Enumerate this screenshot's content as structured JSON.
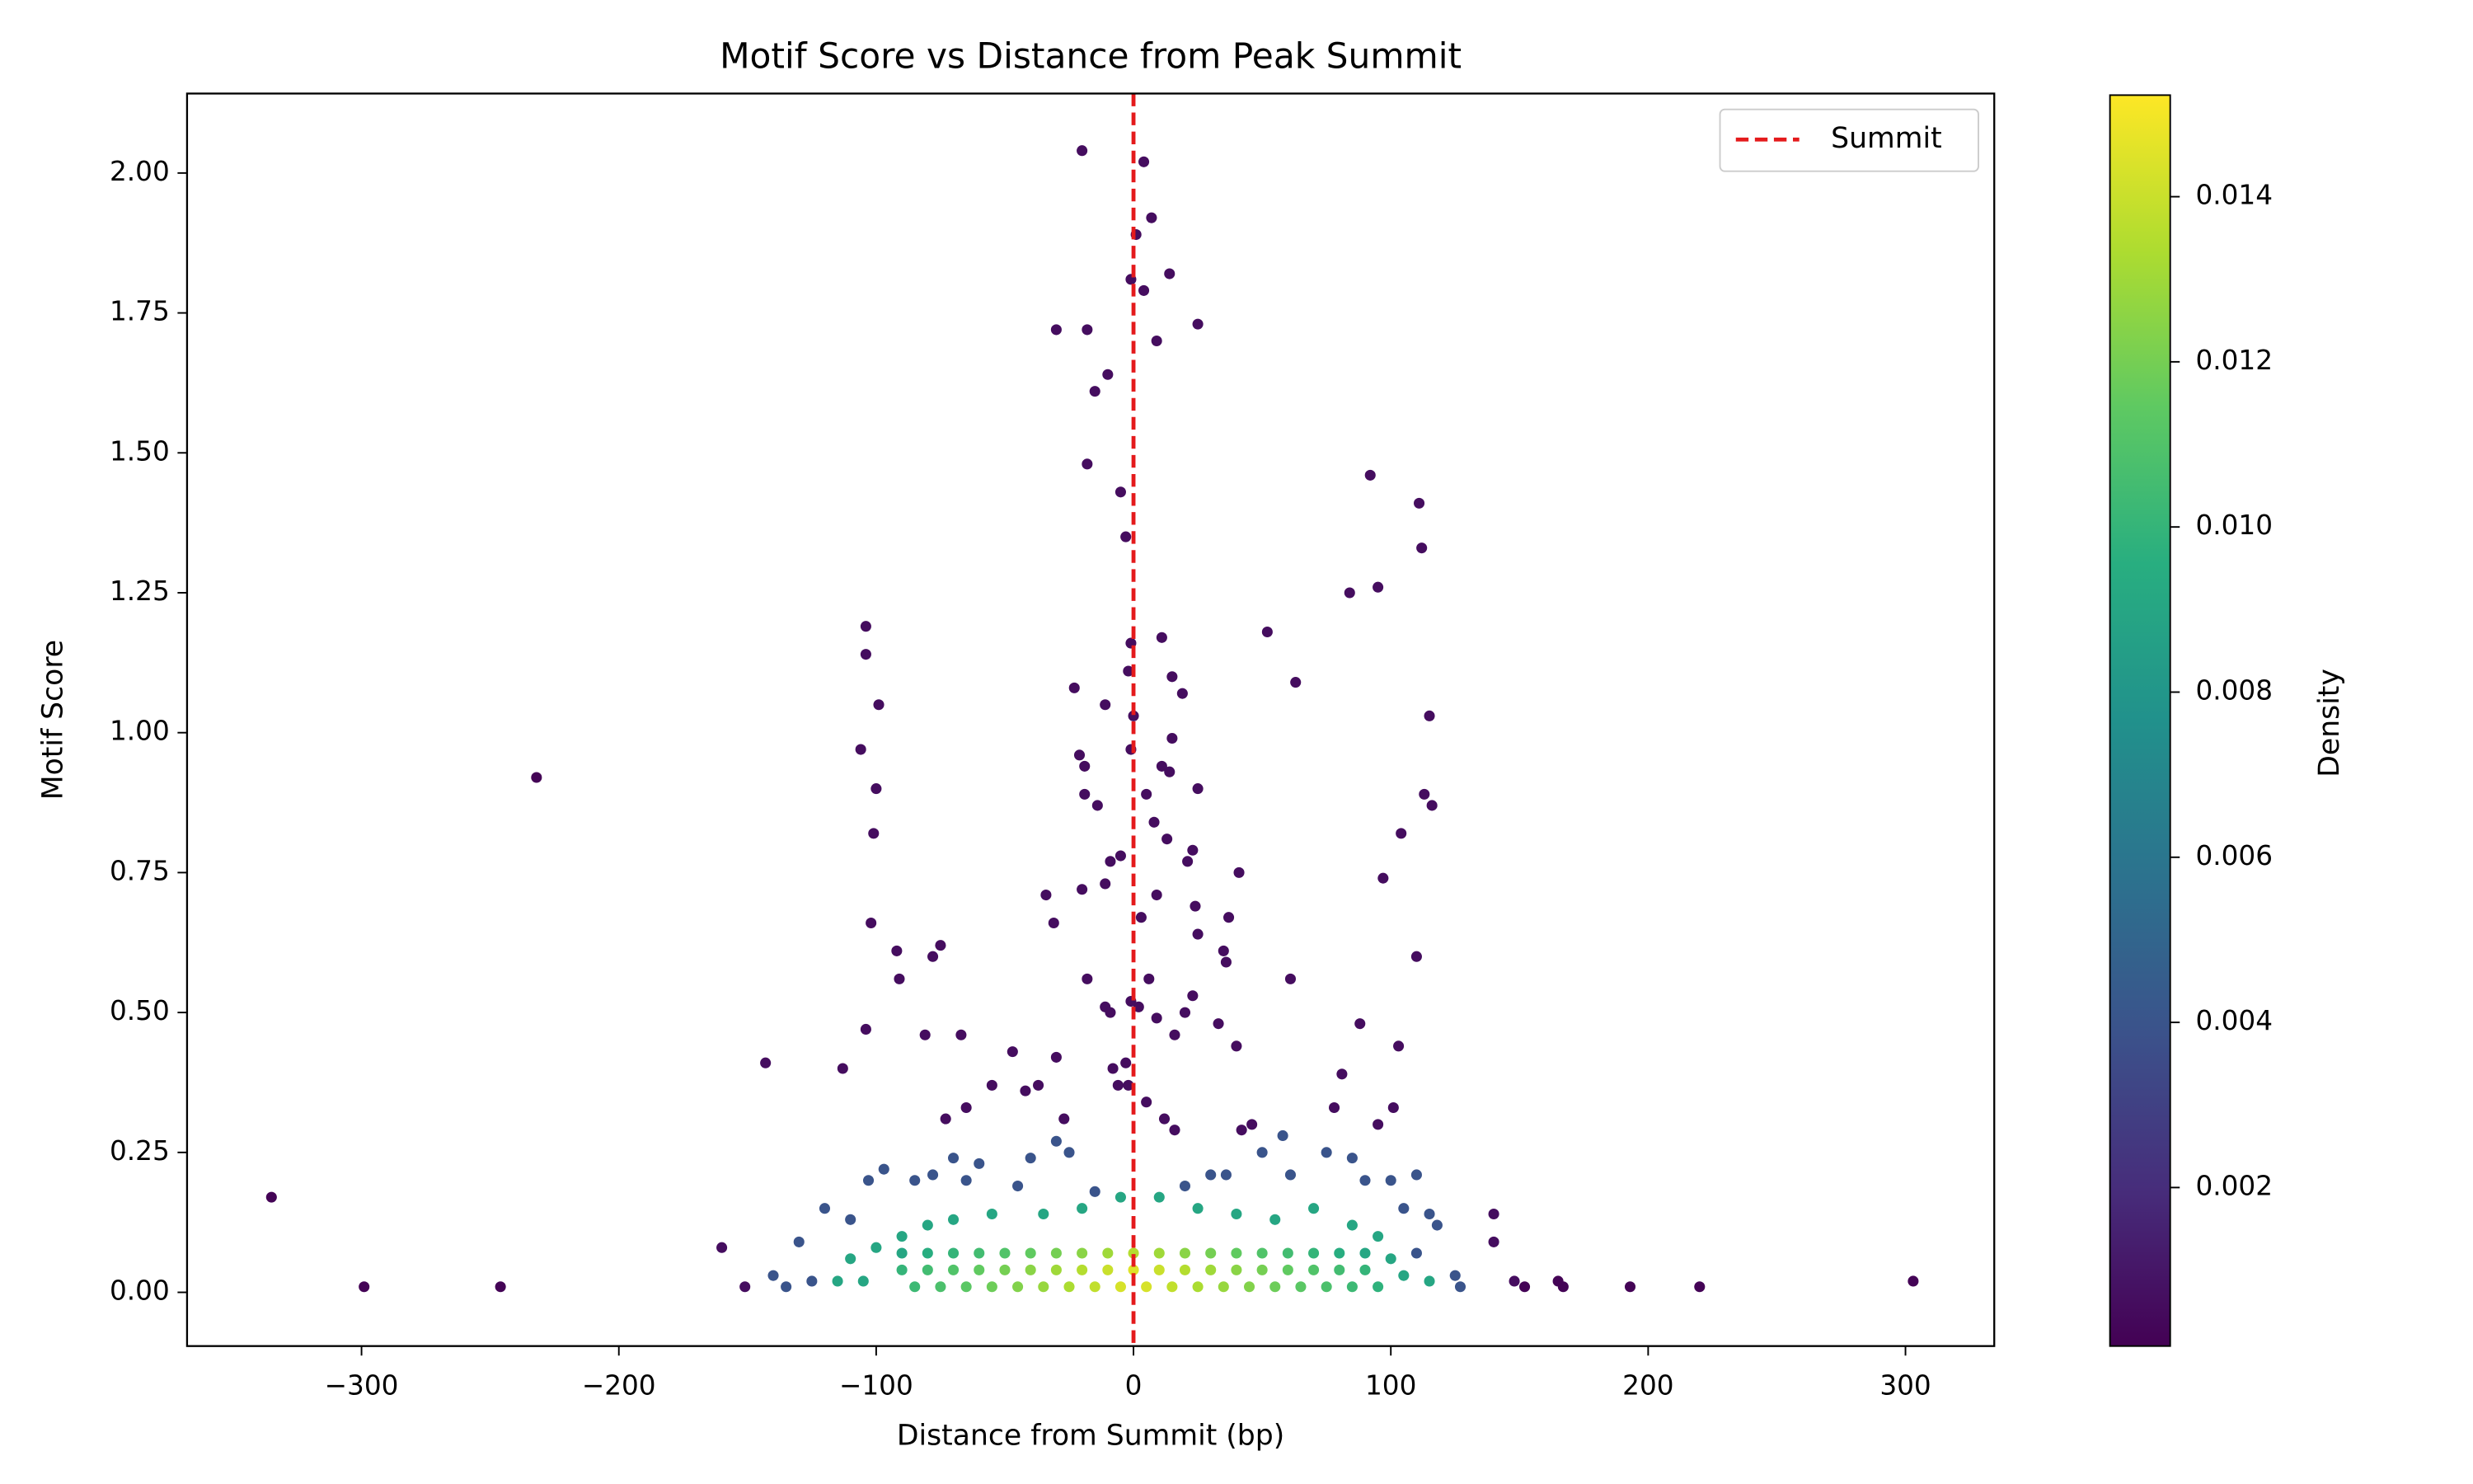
{
  "chart_data": {
    "type": "scatter",
    "title": "Motif Score vs Distance from Peak Summit",
    "x_label": "Distance from Summit (bp)",
    "y_label": "Motif Score",
    "xlim": [
      -367.8,
      334.5
    ],
    "ylim": [
      -0.096,
      2.142
    ],
    "xticks": [
      {
        "value": -300,
        "label": "−300"
      },
      {
        "value": -200,
        "label": "−200"
      },
      {
        "value": -100,
        "label": "−100"
      },
      0,
      100,
      200,
      300
    ],
    "yticks": [
      {
        "value": 0,
        "label": "0.00"
      },
      0.25,
      {
        "value": 0.5,
        "label": "0.50"
      },
      0.75,
      {
        "value": 1,
        "label": "1.00"
      },
      1.25,
      {
        "value": 1.5,
        "label": "1.50"
      },
      1.75,
      {
        "value": 2,
        "label": "2.00"
      }
    ],
    "grid": false,
    "colormap": "viridis",
    "colorbar": {
      "label": "Density",
      "lim": [
        8e-05,
        0.01523
      ],
      "ticks": [
        0.002,
        0.004,
        0.006,
        0.008,
        {
          "value": 0.01,
          "label": "0.010"
        },
        0.012,
        0.014
      ]
    },
    "reference_line": {
      "x": 0,
      "name": "Summit",
      "color": "#e41a1c",
      "style": "dashed"
    },
    "legend": "upper right",
    "x": [
      -335,
      -299,
      -246,
      -232,
      303,
      220,
      193,
      167,
      165,
      152,
      -20,
      4,
      7,
      1,
      -1,
      14,
      4,
      -30,
      -18,
      25,
      9,
      -10,
      -15,
      -18,
      -5,
      -3,
      92,
      111,
      112,
      95,
      84,
      52,
      -104,
      -104,
      11,
      -99,
      63,
      -1,
      -23,
      15,
      19,
      -2,
      -11,
      0,
      115,
      -106,
      -21,
      -1,
      15,
      -19,
      11,
      14,
      -100,
      -19,
      -14,
      5,
      25,
      113,
      116,
      -101,
      8,
      13,
      104,
      -9,
      -5,
      23,
      21,
      41,
      97,
      -34,
      -20,
      -11,
      9,
      3,
      24,
      37,
      -31,
      -102,
      -92,
      -75,
      -78,
      25,
      -91,
      35,
      36,
      110,
      61,
      -18,
      6,
      -11,
      -9,
      -1,
      2,
      23,
      20,
      -104,
      -81,
      -67,
      33,
      9,
      16,
      88,
      -143,
      -113,
      -47,
      -30,
      -8,
      -3,
      40,
      81,
      103,
      -6,
      -2,
      -55,
      -42,
      -37,
      -65,
      -73,
      5,
      101,
      78,
      -27,
      12,
      16,
      42,
      46,
      95,
      -160,
      -151,
      148,
      140,
      140,
      -103,
      -97,
      -85,
      -78,
      -70,
      -65,
      -60,
      -45,
      -40,
      -30,
      -25,
      -15,
      20,
      30,
      36,
      50,
      58,
      61,
      75,
      85,
      90,
      100,
      110,
      -120,
      -110,
      -130,
      -140,
      -135,
      -125,
      125,
      127,
      118,
      115,
      105,
      110,
      -110,
      -100,
      -90,
      -80,
      -70,
      -55,
      -35,
      -20,
      -5,
      10,
      25,
      40,
      55,
      70,
      85,
      95,
      100,
      105,
      -115,
      -105,
      115,
      -90,
      -80,
      -70,
      -60,
      -50,
      -40,
      -30,
      -20,
      -10,
      0,
      10,
      20,
      30,
      40,
      50,
      60,
      70,
      80,
      90,
      -85,
      -75,
      -65,
      -55,
      -45,
      -35,
      -25,
      -15,
      -5,
      5,
      15,
      25,
      35,
      45,
      55,
      65,
      75,
      85,
      95,
      -90,
      -80,
      -70,
      -60,
      -50,
      -40,
      -30,
      -20,
      -10,
      0,
      10,
      20,
      30,
      40,
      50,
      60,
      70,
      80,
      90
    ],
    "values": [
      0.17,
      0.01,
      0.01,
      0.92,
      0.02,
      0.01,
      0.01,
      0.01,
      0.02,
      0.01,
      2.04,
      2.02,
      1.92,
      1.89,
      1.81,
      1.82,
      1.79,
      1.72,
      1.72,
      1.73,
      1.7,
      1.64,
      1.61,
      1.48,
      1.43,
      1.35,
      1.46,
      1.41,
      1.33,
      1.26,
      1.25,
      1.18,
      1.19,
      1.14,
      1.17,
      1.05,
      1.09,
      1.16,
      1.08,
      1.1,
      1.07,
      1.11,
      1.05,
      1.03,
      1.03,
      0.97,
      0.96,
      0.97,
      0.99,
      0.94,
      0.94,
      0.93,
      0.9,
      0.89,
      0.87,
      0.89,
      0.9,
      0.89,
      0.87,
      0.82,
      0.84,
      0.81,
      0.82,
      0.77,
      0.78,
      0.79,
      0.77,
      0.75,
      0.74,
      0.71,
      0.72,
      0.73,
      0.71,
      0.67,
      0.69,
      0.67,
      0.66,
      0.66,
      0.61,
      0.62,
      0.6,
      0.64,
      0.56,
      0.61,
      0.59,
      0.6,
      0.56,
      0.56,
      0.56,
      0.51,
      0.5,
      0.52,
      0.51,
      0.53,
      0.5,
      0.47,
      0.46,
      0.46,
      0.48,
      0.49,
      0.46,
      0.48,
      0.41,
      0.4,
      0.43,
      0.42,
      0.4,
      0.41,
      0.44,
      0.39,
      0.44,
      0.37,
      0.37,
      0.37,
      0.36,
      0.37,
      0.33,
      0.31,
      0.34,
      0.33,
      0.33,
      0.31,
      0.31,
      0.29,
      0.29,
      0.3,
      0.3,
      0.08,
      0.01,
      0.02,
      0.14,
      0.09,
      0.2,
      0.22,
      0.2,
      0.21,
      0.24,
      0.2,
      0.23,
      0.19,
      0.24,
      0.27,
      0.25,
      0.18,
      0.19,
      0.21,
      0.21,
      0.25,
      0.28,
      0.21,
      0.25,
      0.24,
      0.2,
      0.2,
      0.21,
      0.15,
      0.13,
      0.09,
      0.03,
      0.01,
      0.02,
      0.03,
      0.01,
      0.12,
      0.14,
      0.15,
      0.07,
      0.06,
      0.08,
      0.1,
      0.12,
      0.13,
      0.14,
      0.14,
      0.15,
      0.17,
      0.17,
      0.15,
      0.14,
      0.13,
      0.15,
      0.12,
      0.1,
      0.06,
      0.03,
      0.02,
      0.02,
      0.02,
      0.07,
      0.07,
      0.07,
      0.07,
      0.07,
      0.07,
      0.07,
      0.07,
      0.07,
      0.07,
      0.07,
      0.07,
      0.07,
      0.07,
      0.07,
      0.07,
      0.07,
      0.07,
      0.07,
      0.01,
      0.01,
      0.01,
      0.01,
      0.01,
      0.01,
      0.01,
      0.01,
      0.01,
      0.01,
      0.01,
      0.01,
      0.01,
      0.01,
      0.01,
      0.01,
      0.01,
      0.01,
      0.01,
      0.04,
      0.04,
      0.04,
      0.04,
      0.04,
      0.04,
      0.04,
      0.04,
      0.04,
      0.04,
      0.04,
      0.04,
      0.04,
      0.04,
      0.04,
      0.04,
      0.04,
      0.04,
      0.04
    ],
    "density": [
      0.0002,
      0.0002,
      0.0002,
      0.0002,
      0.0002,
      0.0002,
      0.0002,
      0.0002,
      0.0002,
      0.0002,
      0.0006,
      0.0006,
      0.0006,
      0.0006,
      0.0006,
      0.0006,
      0.0006,
      0.0006,
      0.0006,
      0.0006,
      0.0006,
      0.0006,
      0.0006,
      0.0006,
      0.0006,
      0.0006,
      0.0006,
      0.0006,
      0.0006,
      0.0006,
      0.0006,
      0.0006,
      0.0006,
      0.0006,
      0.0006,
      0.0006,
      0.0006,
      0.0006,
      0.0006,
      0.0006,
      0.0006,
      0.0006,
      0.0006,
      0.0006,
      0.0006,
      0.0006,
      0.0006,
      0.0006,
      0.0006,
      0.0006,
      0.0006,
      0.0006,
      0.0006,
      0.0006,
      0.0006,
      0.0006,
      0.0006,
      0.0006,
      0.0006,
      0.0006,
      0.0006,
      0.0006,
      0.0006,
      0.0006,
      0.0006,
      0.0006,
      0.0006,
      0.0006,
      0.0006,
      0.0006,
      0.0006,
      0.0006,
      0.0006,
      0.0006,
      0.0006,
      0.0006,
      0.0006,
      0.0006,
      0.0006,
      0.0006,
      0.0006,
      0.0006,
      0.0006,
      0.0006,
      0.0006,
      0.0006,
      0.0006,
      0.0006,
      0.0006,
      0.0006,
      0.0006,
      0.0006,
      0.0006,
      0.0006,
      0.0006,
      0.0006,
      0.0006,
      0.0006,
      0.0006,
      0.0006,
      0.0006,
      0.0006,
      0.0006,
      0.0006,
      0.0006,
      0.0006,
      0.0006,
      0.0006,
      0.0006,
      0.0006,
      0.0006,
      0.0006,
      0.0006,
      0.0006,
      0.0006,
      0.0006,
      0.0006,
      0.0006,
      0.0006,
      0.0006,
      0.0006,
      0.0006,
      0.0006,
      0.0006,
      0.0006,
      0.0006,
      0.0006,
      0.0006,
      0.0006,
      0.0006,
      0.0006,
      0.0006,
      0.004,
      0.004,
      0.004,
      0.004,
      0.004,
      0.004,
      0.004,
      0.004,
      0.004,
      0.004,
      0.004,
      0.004,
      0.004,
      0.004,
      0.004,
      0.004,
      0.004,
      0.004,
      0.004,
      0.004,
      0.004,
      0.004,
      0.004,
      0.004,
      0.004,
      0.004,
      0.004,
      0.004,
      0.004,
      0.004,
      0.004,
      0.004,
      0.004,
      0.004,
      0.004,
      0.009,
      0.009,
      0.009,
      0.009,
      0.009,
      0.009,
      0.009,
      0.009,
      0.009,
      0.009,
      0.009,
      0.009,
      0.009,
      0.009,
      0.009,
      0.009,
      0.009,
      0.009,
      0.009,
      0.009,
      0.009,
      0.009,
      0.0095,
      0.01,
      0.0105,
      0.011,
      0.0115,
      0.012,
      0.0125,
      0.013,
      0.0135,
      0.013,
      0.0125,
      0.012,
      0.0115,
      0.011,
      0.0105,
      0.01,
      0.0095,
      0.009,
      0.0103,
      0.0108,
      0.0113,
      0.0118,
      0.0123,
      0.0128,
      0.0133,
      0.0138,
      0.0143,
      0.0143,
      0.0138,
      0.0133,
      0.0128,
      0.0123,
      0.0118,
      0.0113,
      0.0108,
      0.0103,
      0.0098,
      0.01,
      0.0105,
      0.011,
      0.0115,
      0.012,
      0.0125,
      0.013,
      0.0135,
      0.014,
      0.0145,
      0.014,
      0.0135,
      0.013,
      0.0125,
      0.012,
      0.0115,
      0.011,
      0.0105,
      0.01
    ]
  }
}
